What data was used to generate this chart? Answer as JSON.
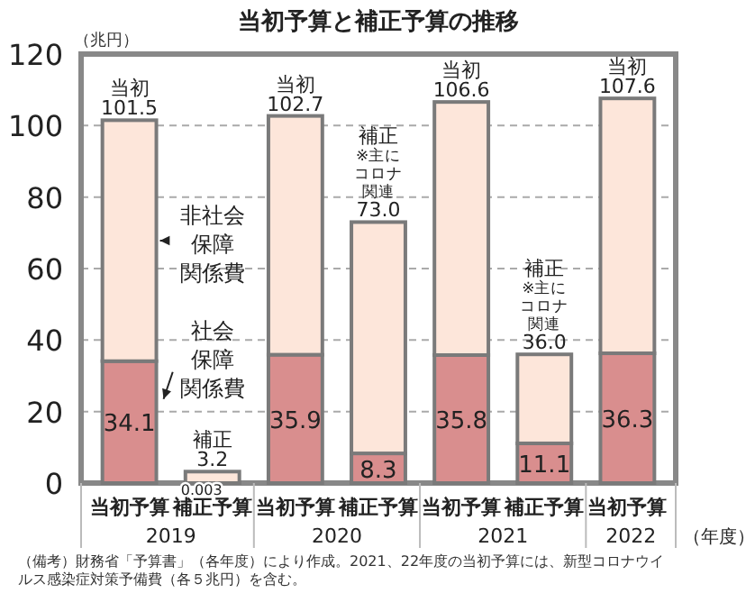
{
  "chart_data": {
    "type": "bar",
    "title": "当初予算と補正予算の推移",
    "ylabel": "（兆円）",
    "xlabel": "（年度）",
    "categories": [
      "当初予算",
      "補正予算",
      "当初予算",
      "補正予算",
      "当初予算",
      "補正予算",
      "当初予算"
    ],
    "stacked": true,
    "series": [
      {
        "name": "社会保障関係費",
        "color": "#d98e8e",
        "values": [
          34.1,
          0.003,
          35.9,
          8.3,
          35.8,
          11.1,
          36.3
        ],
        "value_labels": [
          "34.1",
          "0.003",
          "35.9",
          "8.3",
          "35.8",
          "11.1",
          "36.3"
        ]
      },
      {
        "name": "非社会保障関係費",
        "color": "#fde6da",
        "values": [
          67.4,
          3.2,
          66.8,
          64.7,
          70.8,
          24.9,
          71.3
        ]
      }
    ],
    "totals": [
      "101.5",
      "3.2",
      "102.7",
      "73.0",
      "106.6",
      "36.0",
      "107.6"
    ],
    "ylim": [
      0,
      120
    ],
    "yticks": [
      0,
      20,
      40,
      60,
      80,
      100,
      120
    ],
    "grid": "y",
    "annotations": [
      "当初",
      "補正",
      "当初",
      "補正※主にコロナ関連",
      "当初",
      "補正※主にコロナ関連",
      "当初",
      "2019",
      "2020",
      "2021",
      "2022",
      "（備考）財務省「予算書」（各年度）により作成。2021、22年度の当初予算には、新型コロナウイルス感染症対策予備費（各５兆円）を含む。"
    ]
  }
}
